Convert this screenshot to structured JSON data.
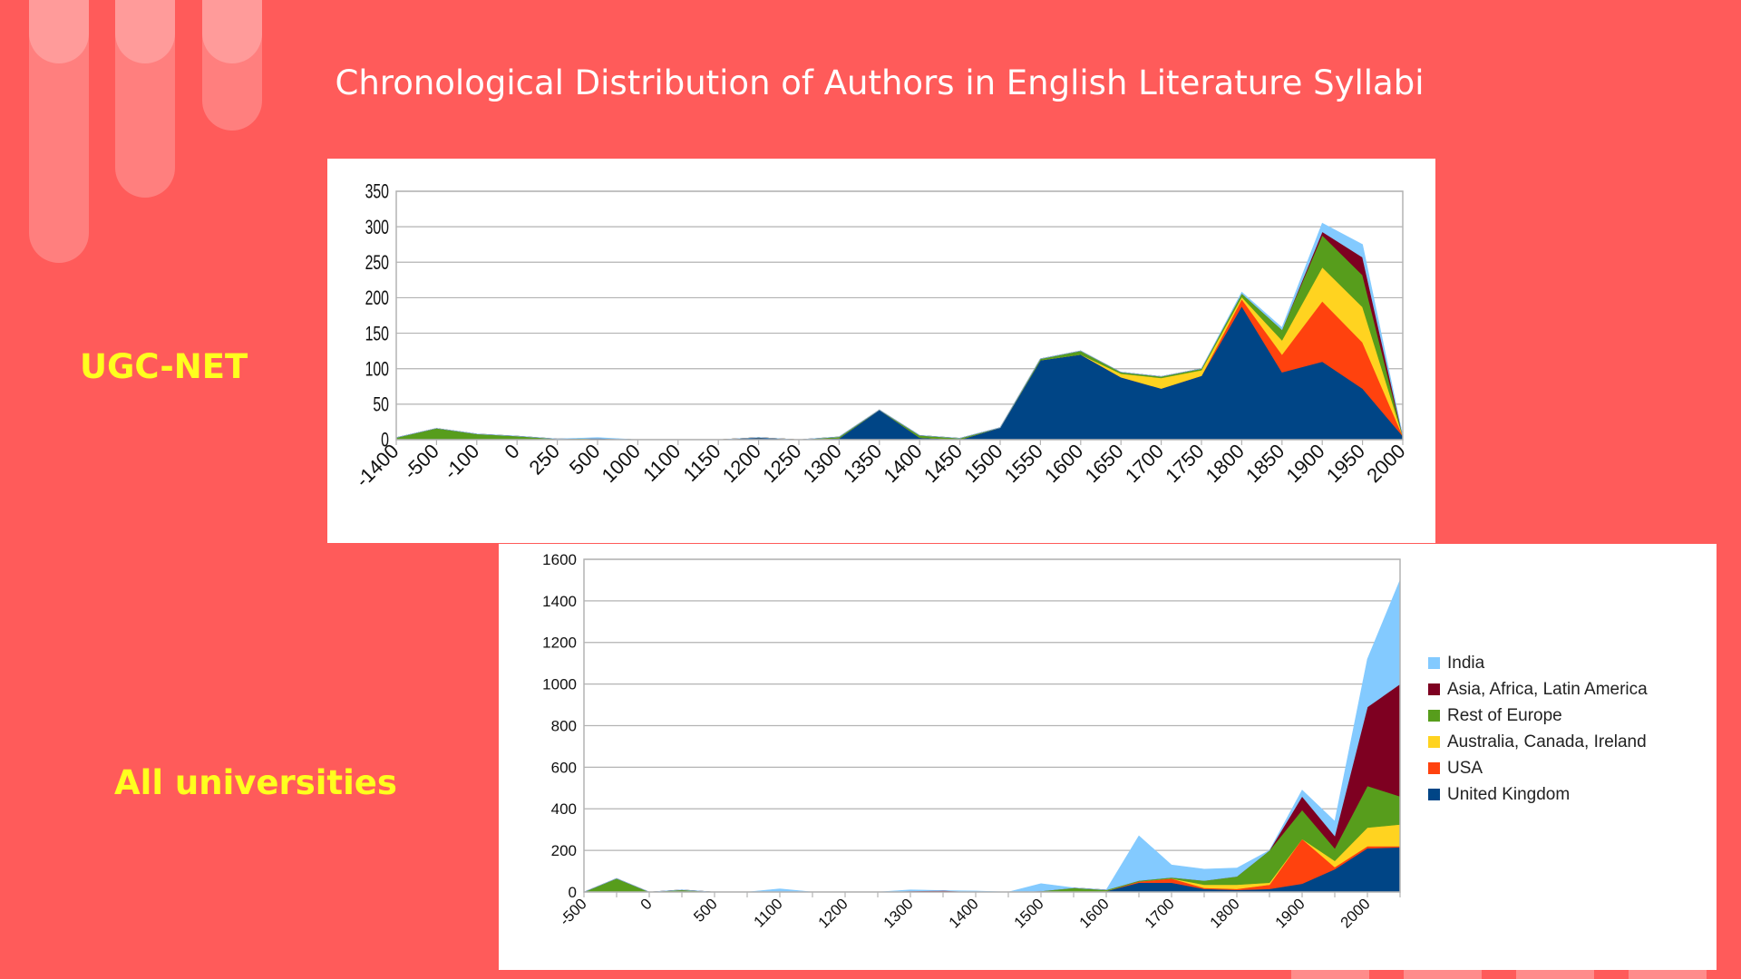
{
  "slide": {
    "title": "Chronological Distribution of Authors in English Literature Syllabi",
    "label_top": "UGC-NET",
    "label_bottom": "All universities"
  },
  "colors": {
    "background": "#ff5b5a",
    "label": "#ffff1e",
    "India": "#83caff",
    "Asia, Africa, Latin America": "#7e0021",
    "Rest of Europe": "#579d1c",
    "Australia, Canada, Ireland": "#ffd320",
    "USA": "#ff420e",
    "United Kingdom": "#004586"
  },
  "chart_data": [
    {
      "type": "area",
      "stacked": true,
      "categories": [
        "-1400",
        "-500",
        "-100",
        "0",
        "250",
        "500",
        "1000",
        "1100",
        "1150",
        "1200",
        "1250",
        "1300",
        "1350",
        "1400",
        "1450",
        "1500",
        "1550",
        "1600",
        "1650",
        "1700",
        "1750",
        "1800",
        "1850",
        "1900",
        "1950",
        "2000"
      ],
      "series": [
        {
          "name": "United Kingdom",
          "values": [
            0,
            0,
            0,
            0,
            0,
            2,
            0,
            0,
            0,
            3,
            0,
            2,
            42,
            3,
            0,
            17,
            112,
            120,
            88,
            72,
            90,
            188,
            95,
            110,
            72,
            5
          ]
        },
        {
          "name": "USA",
          "values": [
            0,
            0,
            0,
            0,
            0,
            0,
            0,
            0,
            0,
            0,
            0,
            0,
            0,
            0,
            0,
            0,
            0,
            0,
            0,
            0,
            0,
            10,
            25,
            85,
            65,
            0
          ]
        },
        {
          "name": "Australia, Canada, Ireland",
          "values": [
            0,
            0,
            0,
            0,
            0,
            0,
            0,
            0,
            0,
            0,
            0,
            0,
            0,
            0,
            0,
            0,
            0,
            0,
            5,
            15,
            8,
            3,
            20,
            48,
            50,
            0
          ]
        },
        {
          "name": "Rest of Europe",
          "values": [
            3,
            16,
            8,
            5,
            1,
            0,
            0,
            0,
            0,
            0,
            0,
            2,
            0,
            3,
            2,
            0,
            2,
            5,
            2,
            2,
            2,
            5,
            15,
            45,
            45,
            0
          ]
        },
        {
          "name": "Asia, Africa, Latin America",
          "values": [
            0,
            0,
            0,
            0,
            0,
            0,
            0,
            0,
            0,
            0,
            0,
            0,
            0,
            0,
            0,
            0,
            0,
            0,
            0,
            0,
            0,
            0,
            0,
            5,
            25,
            0
          ]
        },
        {
          "name": "India",
          "values": [
            0,
            0,
            0,
            0,
            0,
            1,
            0,
            0,
            0,
            0,
            0,
            0,
            0,
            0,
            0,
            0,
            0,
            0,
            0,
            0,
            0,
            2,
            3,
            12,
            18,
            0
          ]
        }
      ],
      "ylim": [
        0,
        350
      ],
      "yticks": [
        0,
        50,
        100,
        150,
        200,
        250,
        300,
        350
      ],
      "grid": true,
      "legend": "none"
    },
    {
      "type": "area",
      "stacked": true,
      "categories": [
        "-500",
        "",
        "0",
        "",
        "500",
        "",
        "1100",
        "",
        "1200",
        "",
        "1300",
        "",
        "1400",
        "",
        "1500",
        "",
        "1600",
        "",
        "1700",
        "",
        "1800",
        "",
        "1900",
        "",
        "2000",
        ""
      ],
      "series": [
        {
          "name": "United Kingdom",
          "values": [
            0,
            0,
            0,
            0,
            0,
            0,
            0,
            0,
            0,
            0,
            0,
            0,
            0,
            0,
            0,
            0,
            5,
            45,
            45,
            15,
            10,
            15,
            40,
            110,
            210,
            215
          ]
        },
        {
          "name": "USA",
          "values": [
            0,
            0,
            0,
            0,
            0,
            0,
            0,
            0,
            0,
            0,
            0,
            2,
            0,
            0,
            0,
            0,
            0,
            5,
            20,
            5,
            5,
            20,
            215,
            10,
            10,
            5
          ]
        },
        {
          "name": "Australia, Canada, Ireland",
          "values": [
            0,
            0,
            0,
            0,
            0,
            0,
            0,
            0,
            0,
            0,
            0,
            0,
            0,
            0,
            0,
            0,
            0,
            0,
            0,
            15,
            20,
            10,
            0,
            30,
            90,
            105
          ]
        },
        {
          "name": "Rest of Europe",
          "values": [
            0,
            65,
            0,
            10,
            0,
            0,
            0,
            0,
            0,
            0,
            0,
            0,
            0,
            0,
            5,
            20,
            5,
            5,
            5,
            20,
            40,
            155,
            140,
            60,
            200,
            135
          ]
        },
        {
          "name": "Asia, Africa, Latin America",
          "values": [
            0,
            0,
            0,
            0,
            0,
            0,
            0,
            0,
            0,
            0,
            5,
            5,
            0,
            0,
            0,
            0,
            0,
            0,
            0,
            0,
            0,
            0,
            65,
            60,
            380,
            540
          ]
        },
        {
          "name": "India",
          "values": [
            0,
            0,
            0,
            0,
            0,
            0,
            15,
            0,
            0,
            0,
            5,
            0,
            5,
            0,
            35,
            0,
            0,
            215,
            60,
            55,
            40,
            0,
            30,
            70,
            230,
            500
          ]
        }
      ],
      "ylim": [
        0,
        1600
      ],
      "yticks": [
        0,
        200,
        400,
        600,
        800,
        1000,
        1200,
        1400,
        1600
      ],
      "grid": true,
      "legend": "right",
      "legend_order": [
        "India",
        "Asia, Africa, Latin America",
        "Rest of Europe",
        "Australia, Canada, Ireland",
        "USA",
        "United Kingdom"
      ]
    }
  ]
}
